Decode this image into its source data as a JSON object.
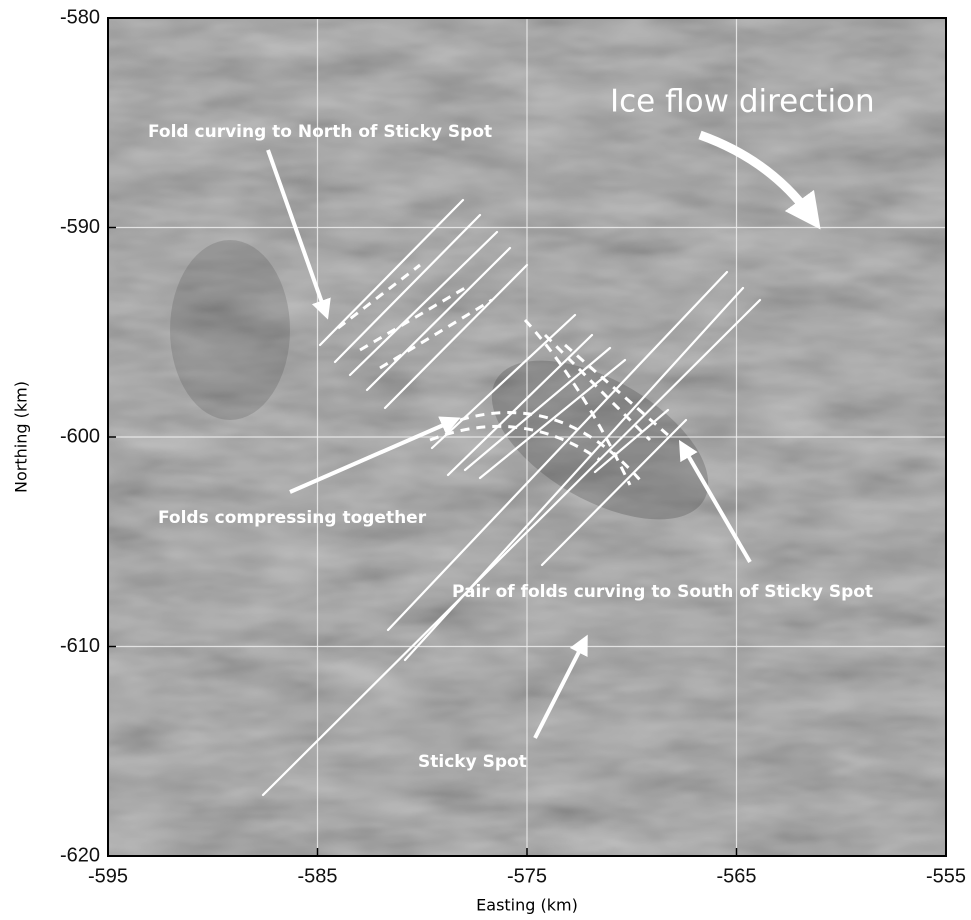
{
  "chart_data": {
    "type": "map",
    "x_label": "Easting (km)",
    "y_label": "Northing (km)",
    "xlim": [
      -595,
      -555
    ],
    "ylim": [
      -620,
      -580
    ],
    "xticks": [
      -595,
      -585,
      -575,
      -565,
      -555
    ],
    "yticks": [
      -620,
      -610,
      -600,
      -590,
      -580
    ],
    "grid": true,
    "annotations": [
      "Ice flow direction",
      "Fold curving to North of Sticky Spot",
      "Folds compressing together",
      "Pair of folds curving to South of Sticky Spot",
      "Sticky Spot"
    ]
  }
}
